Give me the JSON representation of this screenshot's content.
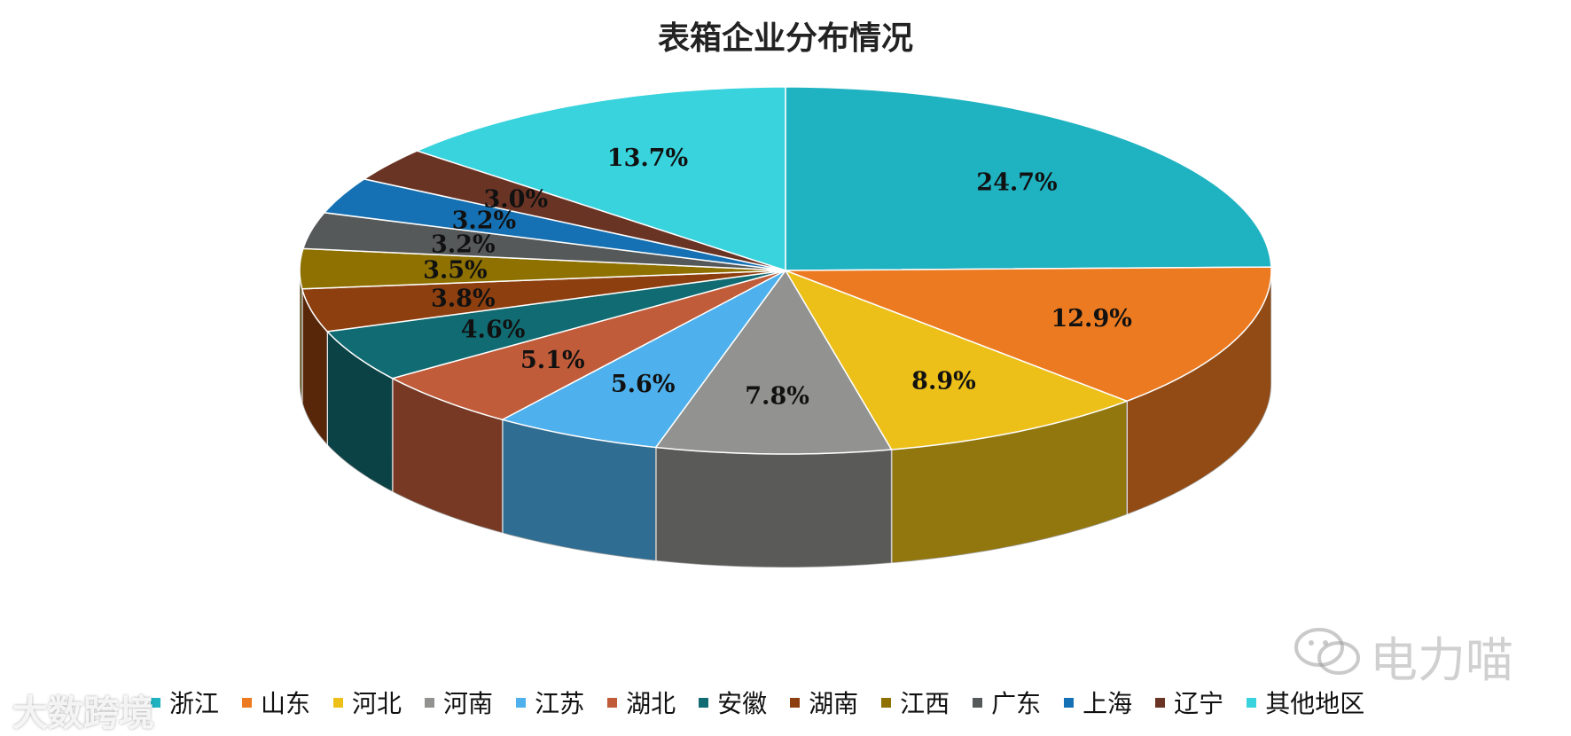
{
  "chart_data": {
    "type": "pie",
    "title": "表箱企业分布情况",
    "categories": [
      "浙江",
      "山东",
      "河北",
      "河南",
      "江苏",
      "湖北",
      "安徽",
      "湖南",
      "江西",
      "广东",
      "上海",
      "辽宁",
      "其他地区"
    ],
    "values": [
      24.7,
      12.9,
      8.9,
      7.8,
      5.6,
      5.1,
      4.6,
      3.8,
      3.5,
      3.2,
      3.2,
      3.0,
      13.7
    ],
    "labels": [
      "24.7%",
      "12.9%",
      "8.9%",
      "7.8%",
      "5.6%",
      "5.1%",
      "4.6%",
      "3.8%",
      "3.5%",
      "3.2%",
      "3.2%",
      "3.0%",
      "13.7%"
    ],
    "colors": [
      "#1fb2c1",
      "#ec7a21",
      "#ecc019",
      "#929390",
      "#4eb0ec",
      "#c05c3a",
      "#116b72",
      "#8e3f0f",
      "#8e7100",
      "#56595a",
      "#1571b3",
      "#6a3425",
      "#38d3dd"
    ],
    "legend_position": "bottom",
    "style": "3d"
  },
  "watermarks": {
    "left": "大数跨境",
    "right": "电力喵"
  }
}
